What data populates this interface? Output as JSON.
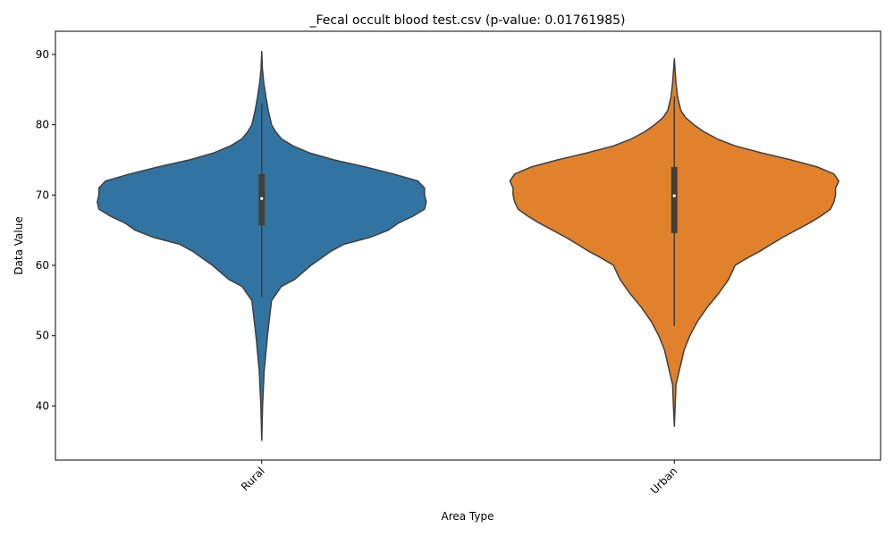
{
  "chart_data": {
    "type": "violin",
    "title": "_Fecal occult blood test.csv (p-value: 0.01761985)",
    "xlabel": "Area Type",
    "ylabel": "Data Value",
    "categories": [
      "Rural",
      "Urban"
    ],
    "ylim": [
      32.3,
      93.3
    ],
    "yticks": [
      40,
      50,
      60,
      70,
      80,
      90
    ],
    "grid": false,
    "series": [
      {
        "category": "Rural",
        "color": "#3274a1",
        "min": 35.1,
        "max": 90.4,
        "q1": 65.7,
        "median": 69.5,
        "q3": 73.0,
        "whisker_low": 55.5,
        "whisker_high": 83.0,
        "density_halfwidths": [
          [
            35.1,
            0
          ],
          [
            40,
            0.005
          ],
          [
            45,
            0.015
          ],
          [
            50,
            0.035
          ],
          [
            53,
            0.05
          ],
          [
            55,
            0.06
          ],
          [
            57,
            0.12
          ],
          [
            58,
            0.2
          ],
          [
            60,
            0.3
          ],
          [
            61,
            0.36
          ],
          [
            62,
            0.42
          ],
          [
            63,
            0.5
          ],
          [
            64,
            0.66
          ],
          [
            65,
            0.77
          ],
          [
            66,
            0.83
          ],
          [
            67,
            0.92
          ],
          [
            68,
            0.99
          ],
          [
            69,
            1.0
          ],
          [
            70,
            0.99
          ],
          [
            71,
            0.99
          ],
          [
            72,
            0.95
          ],
          [
            73,
            0.8
          ],
          [
            74,
            0.63
          ],
          [
            75,
            0.44
          ],
          [
            76,
            0.29
          ],
          [
            77,
            0.19
          ],
          [
            78,
            0.12
          ],
          [
            79,
            0.085
          ],
          [
            80,
            0.06
          ],
          [
            82,
            0.04
          ],
          [
            84,
            0.025
          ],
          [
            86,
            0.012
          ],
          [
            88,
            0.004
          ],
          [
            90.4,
            0
          ]
        ]
      },
      {
        "category": "Urban",
        "color": "#e1812c",
        "min": 37.1,
        "max": 89.4,
        "q1": 64.6,
        "median": 69.9,
        "q3": 74.0,
        "whisker_low": 51.4,
        "whisker_high": 84.0,
        "density_halfwidths": [
          [
            37.1,
            0
          ],
          [
            40,
            0.005
          ],
          [
            43,
            0.01
          ],
          [
            45,
            0.03
          ],
          [
            48,
            0.06
          ],
          [
            50,
            0.095
          ],
          [
            52,
            0.14
          ],
          [
            54,
            0.2
          ],
          [
            56,
            0.27
          ],
          [
            58,
            0.33
          ],
          [
            60,
            0.37
          ],
          [
            61,
            0.44
          ],
          [
            62,
            0.52
          ],
          [
            63,
            0.59
          ],
          [
            64,
            0.66
          ],
          [
            65,
            0.74
          ],
          [
            66,
            0.82
          ],
          [
            67,
            0.89
          ],
          [
            68,
            0.95
          ],
          [
            69,
            0.97
          ],
          [
            70,
            0.98
          ],
          [
            71,
            0.98
          ],
          [
            72,
            1.0
          ],
          [
            73,
            0.97
          ],
          [
            74,
            0.87
          ],
          [
            75,
            0.71
          ],
          [
            76,
            0.53
          ],
          [
            77,
            0.37
          ],
          [
            78,
            0.26
          ],
          [
            79,
            0.18
          ],
          [
            80,
            0.12
          ],
          [
            81,
            0.07
          ],
          [
            82,
            0.04
          ],
          [
            84,
            0.02
          ],
          [
            86,
            0.01
          ],
          [
            89.4,
            0
          ]
        ]
      }
    ]
  }
}
